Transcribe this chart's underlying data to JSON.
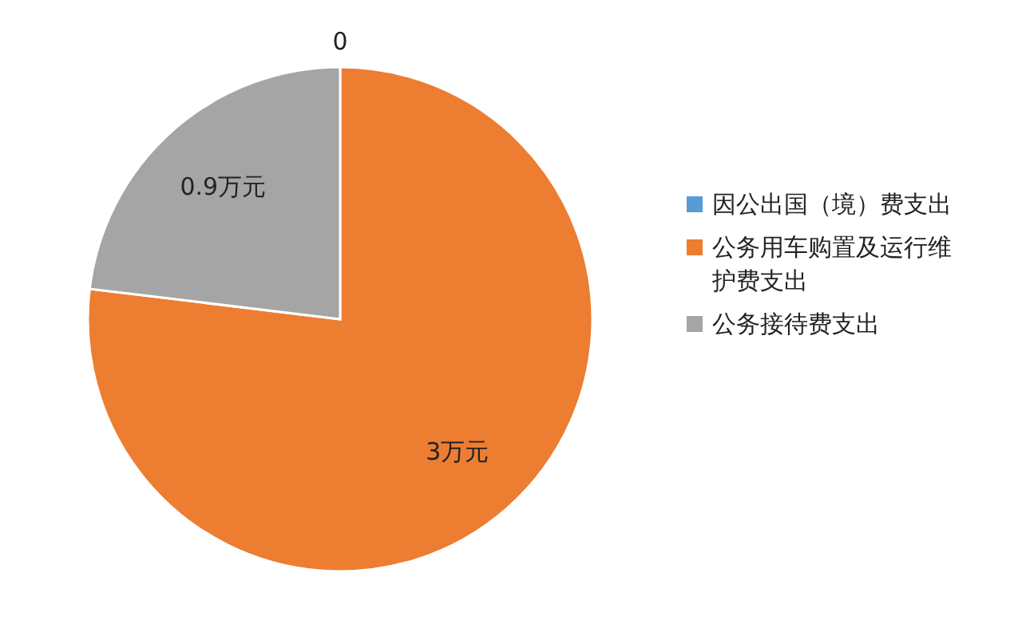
{
  "chart_data": {
    "type": "pie",
    "categories": [
      "因公出国（境）费支出",
      "公务用车购置及运行维护费支出",
      "公务接待费支出"
    ],
    "values": [
      0,
      3,
      0.9
    ],
    "colors": [
      "#5b9bd5",
      "#ed7d31",
      "#a5a5a5"
    ],
    "value_labels": [
      "0",
      "3万元",
      "0.9万元"
    ],
    "legend": "right"
  }
}
